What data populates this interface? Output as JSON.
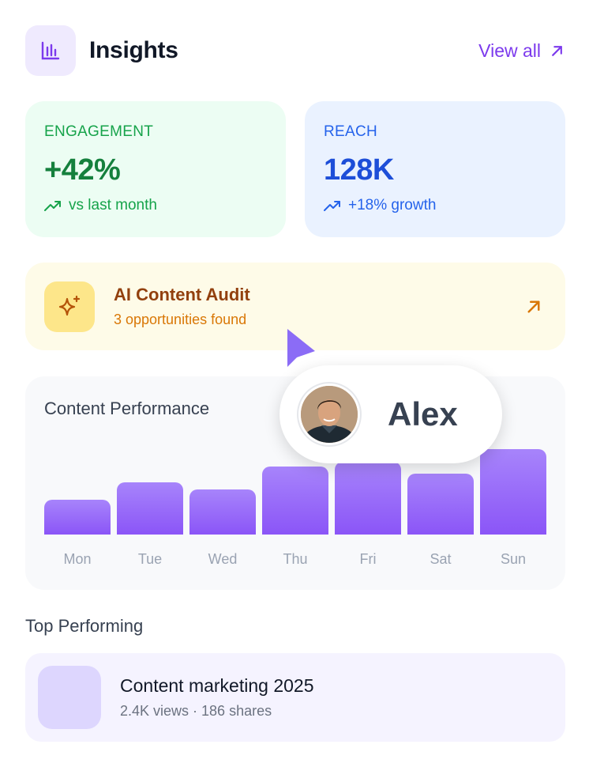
{
  "header": {
    "title": "Insights",
    "view_all_label": "View all",
    "icon": "bar-chart-icon"
  },
  "stats": [
    {
      "label": "ENGAGEMENT",
      "value": "+42%",
      "sub": "vs last month",
      "color": "#15803d",
      "icon": "trending-up-icon"
    },
    {
      "label": "REACH",
      "value": "128K",
      "sub": "+18% growth",
      "color": "#1d4ed8",
      "icon": "trending-up-icon"
    }
  ],
  "audit": {
    "title": "AI Content Audit",
    "subtitle": "3 opportunities found",
    "icon": "sparkle-icon",
    "arrow_icon": "arrow-up-right-icon"
  },
  "performance": {
    "title": "Content Performance"
  },
  "chart_data": {
    "type": "bar",
    "categories": [
      "Mon",
      "Tue",
      "Wed",
      "Thu",
      "Fri",
      "Sat",
      "Sun"
    ],
    "values": [
      40,
      60,
      52,
      78,
      84,
      70,
      98
    ],
    "ylim": [
      0,
      100
    ],
    "title": "Content Performance",
    "color": "#8b55f7"
  },
  "collaborator": {
    "name": "Alex",
    "cursor_color": "#8b6cf6"
  },
  "top_performing": {
    "section_title": "Top Performing",
    "items": [
      {
        "title": "Content marketing 2025",
        "meta": "2.4K views · 186 shares"
      }
    ]
  }
}
